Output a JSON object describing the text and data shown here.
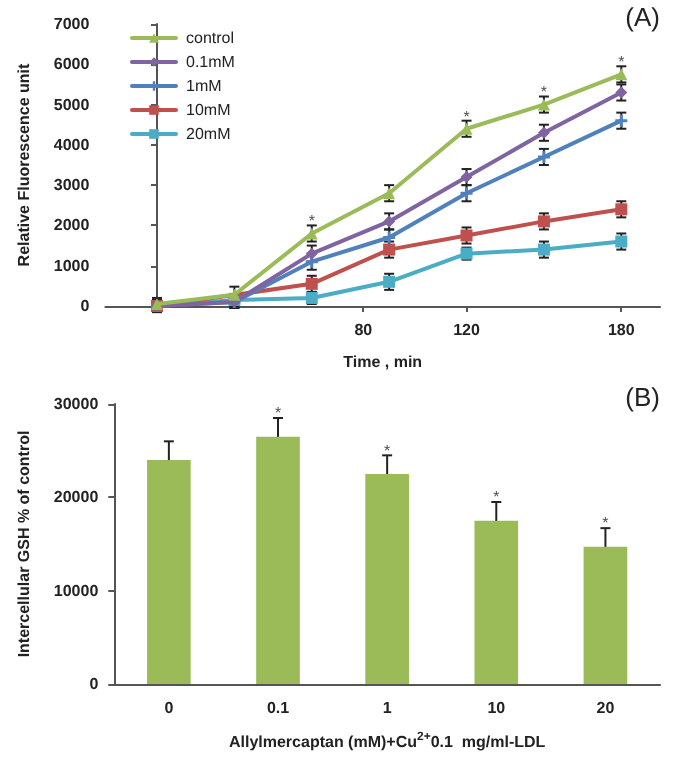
{
  "chart_data": [
    {
      "type": "line",
      "xlabel": "Time , min",
      "ylabel": "Relative Fluorescence unit",
      "x": [
        0,
        30,
        60,
        90,
        120,
        150,
        180
      ],
      "xlim": [
        -20,
        195
      ],
      "xticks": [
        80,
        120,
        180
      ],
      "ylim": [
        0,
        7000
      ],
      "yticks": [
        0,
        1000,
        2000,
        3000,
        4000,
        5000,
        6000,
        7000
      ],
      "legend": "top left",
      "grid": false,
      "line_style": "solid",
      "series": [
        {
          "name": "control",
          "color": "#9bbb59",
          "marker": "triangle",
          "values": [
            50,
            280,
            1800,
            2800,
            4400,
            5000,
            5750
          ],
          "errors": [
            150,
            200,
            200,
            200,
            200,
            200,
            200
          ]
        },
        {
          "name": "0.1mM",
          "color": "#8064a2",
          "marker": "diamond",
          "values": [
            0,
            100,
            1300,
            2100,
            3200,
            4300,
            5300
          ],
          "errors": [
            150,
            150,
            200,
            200,
            200,
            200,
            200
          ]
        },
        {
          "name": "1mM",
          "color": "#4f81bd",
          "marker": "cross",
          "values": [
            0,
            100,
            1100,
            1700,
            2800,
            3700,
            4600
          ],
          "errors": [
            150,
            150,
            200,
            200,
            200,
            200,
            200
          ]
        },
        {
          "name": "10mM",
          "color": "#c0504d",
          "marker": "square",
          "values": [
            0,
            null,
            550,
            1400,
            1750,
            2100,
            2400
          ],
          "errors": [
            150,
            null,
            200,
            200,
            200,
            200,
            200
          ]
        },
        {
          "name": "20mM",
          "color": "#4bacc6",
          "marker": "square",
          "values": [
            0,
            150,
            200,
            600,
            1300,
            1400,
            1600
          ],
          "errors": [
            150,
            150,
            150,
            200,
            150,
            200,
            200
          ]
        }
      ],
      "annotations": [
        "(A)",
        {
          "text": "*",
          "x": 60,
          "y": 2100
        },
        {
          "text": "*",
          "x": 120,
          "y": 4700
        },
        {
          "text": "*",
          "x": 150,
          "y": 5300
        },
        {
          "text": "*",
          "x": 180,
          "y": 6050
        }
      ]
    },
    {
      "type": "bar",
      "xlabel": "Allylmercaptan (mM)+Cu$^{2+}$0.1  mg/ml-LDL",
      "ylabel": "Intercellular GSH % of control",
      "categories": [
        "0",
        "0.1",
        "1",
        "10",
        "20"
      ],
      "ylim": [
        0,
        30000
      ],
      "yticks": [
        0,
        10000,
        20000,
        30000
      ],
      "grid": false,
      "legend": false,
      "series": [
        {
          "color": "#9bbb59",
          "values": [
            24000,
            26500,
            22500,
            17500,
            14700
          ],
          "errors": [
            2000,
            2000,
            2000,
            2000,
            2000
          ]
        }
      ],
      "annotations": [
        "(B)",
        {
          "text": "*",
          "x": "0.1",
          "y": 29000
        },
        {
          "text": "*",
          "x": "1",
          "y": 25000
        },
        {
          "text": "*",
          "x": "10",
          "y": 20000
        },
        {
          "text": "*",
          "x": "20",
          "y": 17200
        }
      ]
    }
  ]
}
